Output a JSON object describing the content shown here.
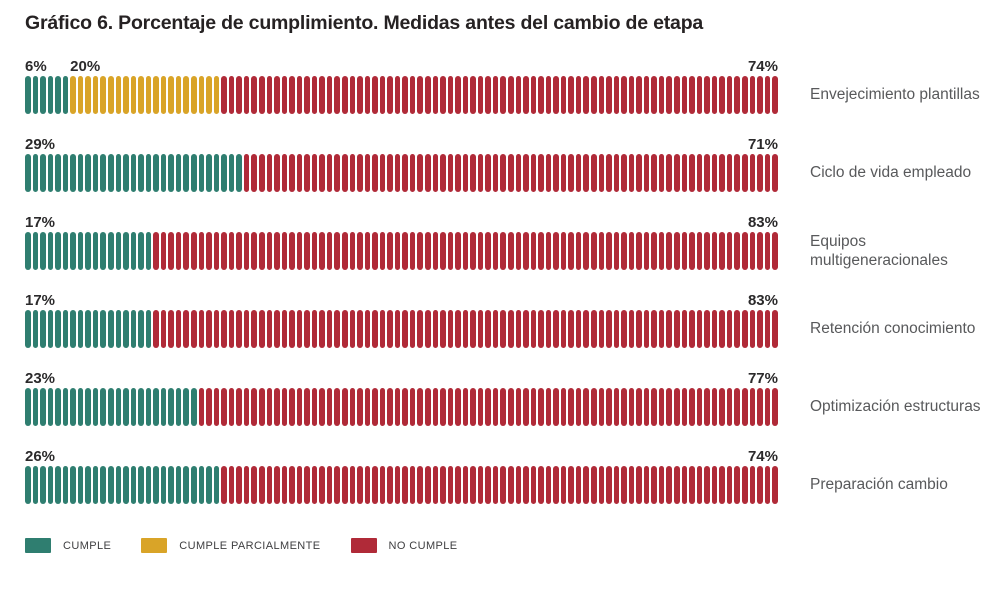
{
  "title": "Gráfico 6. Porcentaje de cumplimiento. Medidas antes del cambio de etapa",
  "colors": {
    "cumple": "#2F7E70",
    "cumple_parcialmente": "#D9A428",
    "no_cumple": "#B02A38",
    "title_text": "#262223",
    "value_text": "#2b2a2b",
    "row_label_text": "#58595b",
    "legend_text": "#3e3e40",
    "background": "#ffffff"
  },
  "chart_data": {
    "type": "bar",
    "subtype": "pictogram-stacked-100",
    "orientation": "horizontal",
    "unit": "%",
    "total_per_row": 100,
    "pictogram_pills_per_row": 100,
    "title": "Gráfico 6. Porcentaje de cumplimiento. Medidas antes del cambio de etapa",
    "xlabel": "",
    "ylabel": "",
    "grid": false,
    "legend_position": "bottom",
    "categories": [
      "Envejecimiento plantillas",
      "Ciclo de vida empleado",
      "Equipos multigeneracionales",
      "Retención conocimiento",
      "Optimización estructuras",
      "Preparación cambio"
    ],
    "series": [
      {
        "name": "CUMPLE",
        "color": "#2F7E70",
        "values": [
          6,
          29,
          17,
          17,
          23,
          26
        ]
      },
      {
        "name": "CUMPLE PARCIALMENTE",
        "color": "#D9A428",
        "values": [
          20,
          0,
          0,
          0,
          0,
          0
        ]
      },
      {
        "name": "NO CUMPLE",
        "color": "#B02A38",
        "values": [
          74,
          71,
          83,
          83,
          77,
          74
        ]
      }
    ],
    "rows": [
      {
        "label": "Envejecimiento plantillas",
        "segments": [
          {
            "series": "CUMPLE",
            "value": 6,
            "label": "6%"
          },
          {
            "series": "CUMPLE PARCIALMENTE",
            "value": 20,
            "label": "20%"
          },
          {
            "series": "NO CUMPLE",
            "value": 74,
            "label": "74%"
          }
        ]
      },
      {
        "label": "Ciclo de vida empleado",
        "segments": [
          {
            "series": "CUMPLE",
            "value": 29,
            "label": "29%"
          },
          {
            "series": "NO CUMPLE",
            "value": 71,
            "label": "71%"
          }
        ]
      },
      {
        "label": "Equipos multigeneracionales",
        "segments": [
          {
            "series": "CUMPLE",
            "value": 17,
            "label": "17%"
          },
          {
            "series": "NO CUMPLE",
            "value": 83,
            "label": "83%"
          }
        ]
      },
      {
        "label": "Retención conocimiento",
        "segments": [
          {
            "series": "CUMPLE",
            "value": 17,
            "label": "17%"
          },
          {
            "series": "NO CUMPLE",
            "value": 83,
            "label": "83%"
          }
        ]
      },
      {
        "label": "Optimización estructuras",
        "segments": [
          {
            "series": "CUMPLE",
            "value": 23,
            "label": "23%"
          },
          {
            "series": "NO CUMPLE",
            "value": 77,
            "label": "77%"
          }
        ]
      },
      {
        "label": "Preparación cambio",
        "segments": [
          {
            "series": "CUMPLE",
            "value": 26,
            "label": "26%"
          },
          {
            "series": "NO CUMPLE",
            "value": 74,
            "label": "74%"
          }
        ]
      }
    ]
  },
  "legend": {
    "items": [
      {
        "label": "CUMPLE",
        "color": "#2F7E70"
      },
      {
        "label": "CUMPLE PARCIALMENTE",
        "color": "#D9A428"
      },
      {
        "label": "NO CUMPLE",
        "color": "#B02A38"
      }
    ]
  }
}
